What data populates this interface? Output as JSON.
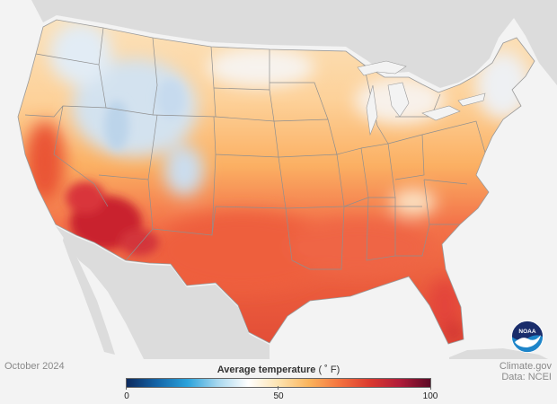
{
  "map": {
    "region": "Contiguous United States",
    "month_label": "October 2024",
    "colors": {
      "water": "#f3f3f3",
      "neighbor_land": "#dcdcdc",
      "state_border": "#8f8f8f",
      "coast": "#9a9a9a"
    },
    "temperature_zones_F": [
      {
        "region": "Northern Rockies / mountains",
        "approx_F": 45,
        "color": "#c5dcef"
      },
      {
        "region": "Northern Plains / Great Lakes",
        "approx_F": 55,
        "color": "#fde8c2"
      },
      {
        "region": "Central US",
        "approx_F": 60,
        "color": "#fcc27a"
      },
      {
        "region": "Southern Plains / Southeast",
        "approx_F": 70,
        "color": "#f26a44"
      },
      {
        "region": "Desert Southwest",
        "approx_F": 78,
        "color": "#c9242e"
      },
      {
        "region": "South Florida",
        "approx_F": 80,
        "color": "#c2202c"
      }
    ]
  },
  "legend": {
    "title": "Average temperature",
    "unit": "( ˚ F)",
    "min": 0,
    "mid": 50,
    "max": 100,
    "ticks": [
      "0",
      "50",
      "100"
    ],
    "gradient": [
      "#0d2a5e",
      "#1465a8",
      "#2aa2db",
      "#a7d7ee",
      "#ffffff",
      "#fde3b0",
      "#fbb45c",
      "#f4733f",
      "#db3a2f",
      "#b01c3a",
      "#5c0a26"
    ]
  },
  "credits": {
    "date": "October 2024",
    "site": "Climate.gov",
    "source": "Data: NCEI"
  },
  "logo": {
    "text": "NOAA",
    "icon": "noaa-logo-icon",
    "colors": {
      "top": "#1a2d6b",
      "bottom": "#1e85c9",
      "wave": "#ffffff"
    }
  }
}
